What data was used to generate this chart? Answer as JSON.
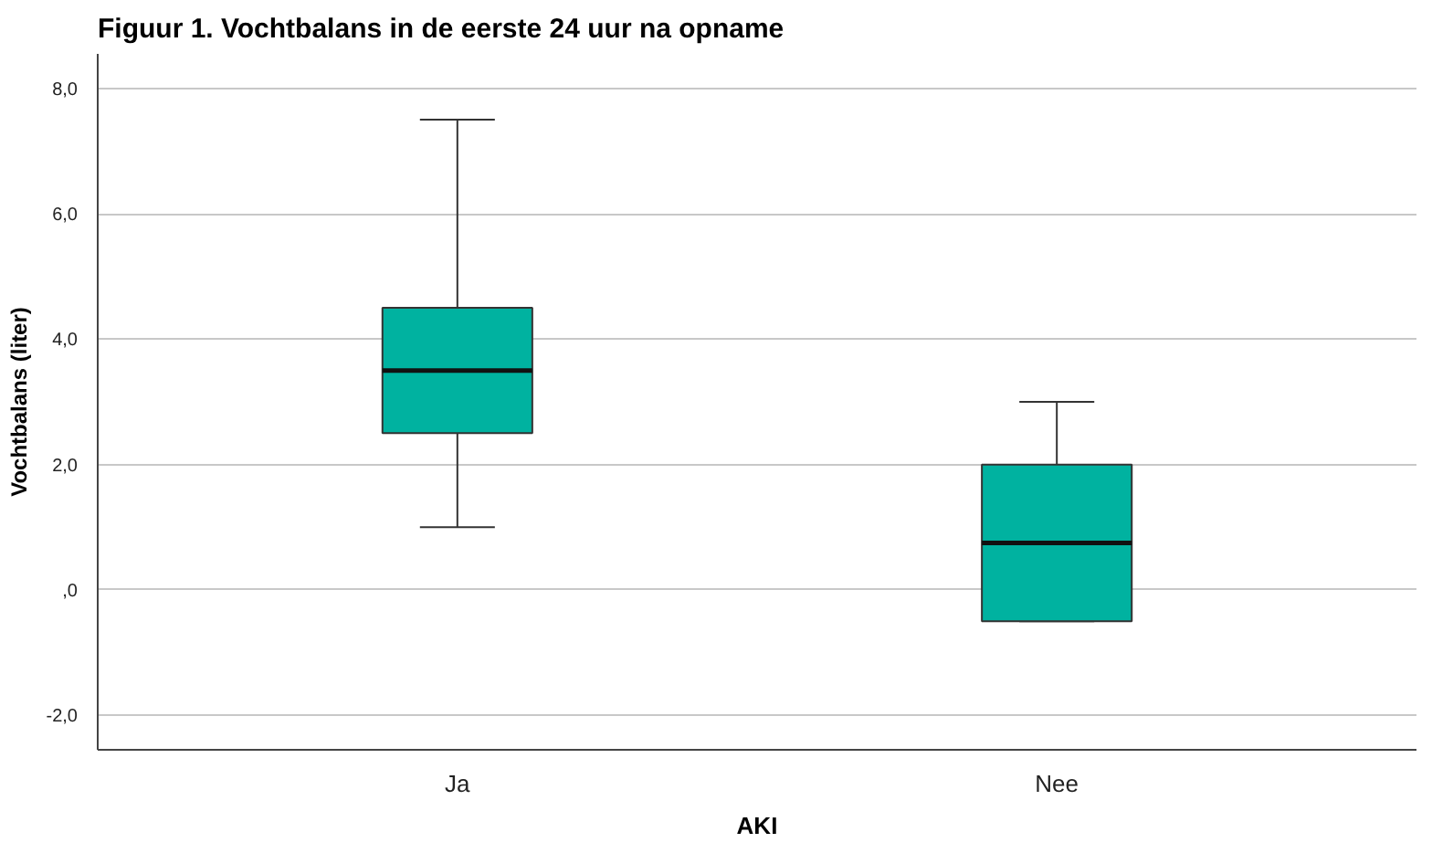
{
  "chart_data": {
    "type": "box",
    "title": "Figuur 1. Vochtbalans in de eerste 24 uur na opname",
    "xlabel": "AKI",
    "ylabel": "Vochtbalans (liter)",
    "categories": [
      "Ja",
      "Nee"
    ],
    "series": [
      {
        "color": "#00b2a0",
        "boxes": [
          {
            "low": 1.0,
            "q1": 2.5,
            "median": 3.5,
            "q3": 4.5,
            "high": 7.5
          },
          {
            "low": -0.5,
            "q1": -0.5,
            "median": 0.75,
            "q3": 2.0,
            "high": 3.0
          }
        ]
      }
    ],
    "ylim": [
      -2.55,
      8.55
    ],
    "yticks": [
      {
        "value": -2,
        "label": "-2,0"
      },
      {
        "value": 0,
        "label": ",0"
      },
      {
        "value": 2,
        "label": "2,0"
      },
      {
        "value": 4,
        "label": "4,0"
      },
      {
        "value": 6,
        "label": "6,0"
      },
      {
        "value": 8,
        "label": "8,0"
      }
    ],
    "grid": "y"
  }
}
